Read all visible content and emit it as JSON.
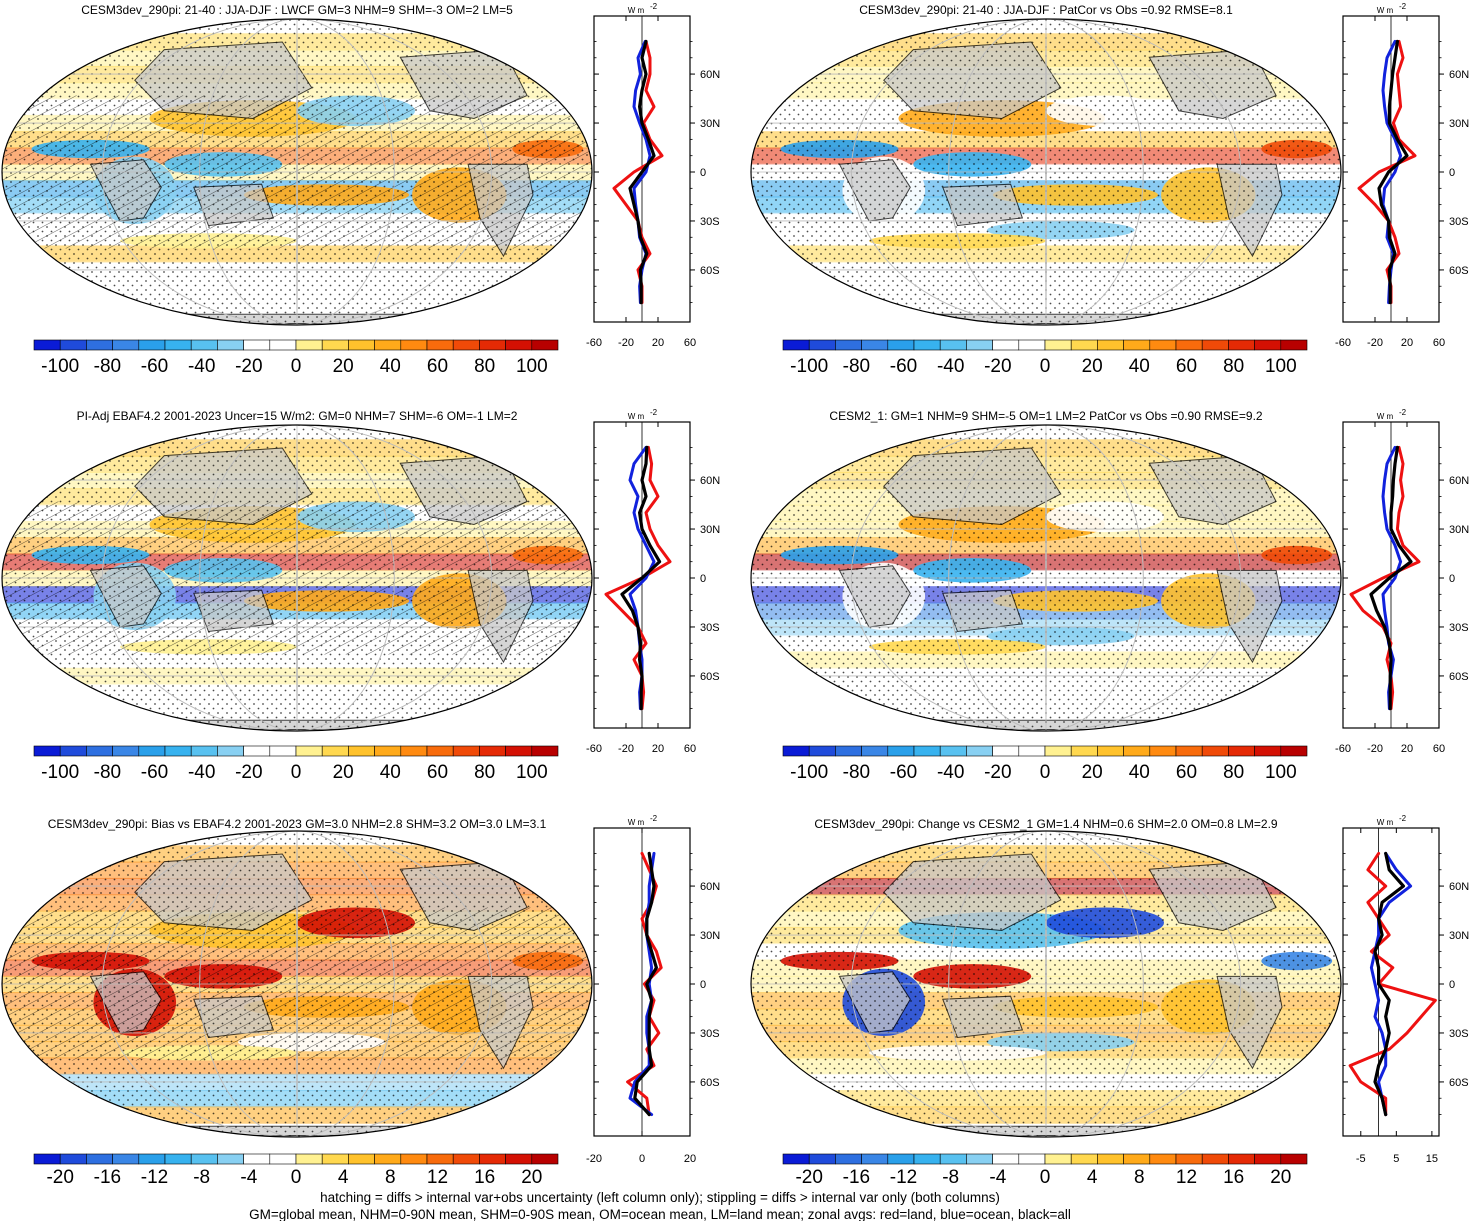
{
  "figure": {
    "footer_lines": [
      "hatching = diffs > internal var+obs uncertainty (left column only); stippling = diffs > internal var only (both columns)",
      "GM=global mean, NHM=0-90N mean, SHM=0-90S mean, OM=ocean mean, LM=land mean; zonal avgs: red=land, blue=ocean, black=all"
    ],
    "zonal_unit": "W m",
    "zonal_unit_exp": "-2",
    "series_colors": {
      "land": "#ee1111",
      "ocean": "#1122dd",
      "all": "#000000"
    },
    "land_color": "#c8c8c8",
    "colormap": [
      "#0a1bd6",
      "#1f4bdb",
      "#2e6fe0",
      "#3a86e6",
      "#2aa0ea",
      "#37b2ef",
      "#58c1f0",
      "#88d0f2",
      "#ffffff",
      "#ffffff",
      "#fff191",
      "#ffd84f",
      "#ffc22c",
      "#ffaa1a",
      "#ff8a10",
      "#f86b0c",
      "#f04a08",
      "#e52a05",
      "#d41003",
      "#b80000"
    ]
  },
  "chart_data": [
    {
      "type": "heatmap",
      "panel": "top-left",
      "title": "CESM3dev_290pi: 21-40 : JJA-DJF : LWCF GM=3 NHM=9 SHM=-3 OM=2 LM=5",
      "colorbar_ticks": [
        "-100",
        "-80",
        "-60",
        "-40",
        "-20",
        "0",
        "20",
        "40",
        "60",
        "80",
        "100"
      ],
      "colorbar_range": [
        -110,
        110
      ],
      "hatching": true,
      "zonal": {
        "xlim": [
          -60,
          60
        ],
        "xticks": [
          "-60",
          "-20",
          "20",
          "60"
        ],
        "yticks": [
          "60N",
          "30N",
          "0",
          "30S",
          "60S"
        ],
        "lat": [
          80,
          70,
          60,
          50,
          40,
          30,
          20,
          10,
          0,
          -10,
          -20,
          -30,
          -40,
          -50,
          -60,
          -70,
          -80
        ],
        "land": [
          5,
          10,
          10,
          5,
          15,
          2,
          10,
          25,
          -10,
          -35,
          -20,
          -5,
          0,
          10,
          -5,
          0,
          0
        ],
        "ocean": [
          4,
          -5,
          -2,
          -8,
          -10,
          -3,
          5,
          10,
          5,
          -10,
          -8,
          -5,
          -3,
          5,
          0,
          -3,
          -2
        ],
        "all": [
          5,
          0,
          5,
          0,
          -3,
          0,
          8,
          15,
          0,
          -15,
          -10,
          -5,
          -2,
          6,
          -2,
          -1,
          -1
        ]
      }
    },
    {
      "type": "heatmap",
      "panel": "top-right",
      "title": "CESM3dev_290pi: 21-40 : JJA-DJF : PatCor vs Obs =0.92 RMSE=8.1",
      "colorbar_ticks": [
        "-100",
        "-80",
        "-60",
        "-40",
        "-20",
        "0",
        "20",
        "40",
        "60",
        "80",
        "100"
      ],
      "colorbar_range": [
        -110,
        110
      ],
      "hatching": false,
      "zonal": {
        "xlim": [
          -60,
          60
        ],
        "xticks": [
          "-60",
          "-20",
          "20",
          "60"
        ],
        "yticks": [
          "60N",
          "30N",
          "0",
          "30S",
          "60S"
        ],
        "lat": [
          80,
          70,
          60,
          50,
          40,
          30,
          20,
          10,
          0,
          -10,
          -20,
          -30,
          -40,
          -50,
          -60,
          -70,
          -80
        ],
        "land": [
          10,
          15,
          8,
          10,
          12,
          3,
          10,
          30,
          -15,
          -40,
          -20,
          -3,
          5,
          10,
          -5,
          0,
          0
        ],
        "ocean": [
          5,
          -5,
          -8,
          -10,
          -8,
          -5,
          5,
          12,
          5,
          -8,
          -10,
          -3,
          -5,
          3,
          0,
          -2,
          -3
        ],
        "all": [
          8,
          5,
          2,
          0,
          -2,
          -2,
          8,
          20,
          -3,
          -15,
          -12,
          -3,
          -2,
          5,
          -2,
          -1,
          -1
        ]
      }
    },
    {
      "type": "heatmap",
      "panel": "middle-left",
      "title": "PI-Adj EBAF4.2 2001-2023 Uncer=15 W/m2: GM=0 NHM=7 SHM=-6 OM=-1 LM=2",
      "colorbar_ticks": [
        "-100",
        "-80",
        "-60",
        "-40",
        "-20",
        "0",
        "20",
        "40",
        "60",
        "80",
        "100"
      ],
      "colorbar_range": [
        -110,
        110
      ],
      "hatching": true,
      "zonal": {
        "xlim": [
          -60,
          60
        ],
        "xticks": [
          "-60",
          "-20",
          "20",
          "60"
        ],
        "yticks": [
          "60N",
          "30N",
          "0",
          "30S",
          "60S"
        ],
        "lat": [
          80,
          70,
          60,
          50,
          40,
          30,
          20,
          10,
          0,
          -10,
          -20,
          -30,
          -40,
          -50,
          -60,
          -70,
          -80
        ],
        "land": [
          8,
          12,
          10,
          20,
          5,
          10,
          20,
          35,
          0,
          -45,
          -25,
          -5,
          5,
          -10,
          0,
          2,
          0
        ],
        "ocean": [
          5,
          -10,
          -15,
          -5,
          -10,
          -5,
          5,
          15,
          5,
          -15,
          -8,
          -5,
          -3,
          0,
          0,
          -3,
          -2
        ],
        "all": [
          6,
          5,
          0,
          5,
          -3,
          0,
          10,
          22,
          0,
          -25,
          -12,
          -5,
          -2,
          -3,
          0,
          -1,
          -1
        ]
      }
    },
    {
      "type": "heatmap",
      "panel": "middle-right",
      "title": "CESM2_1: GM=1 NHM=9 SHM=-5 OM=1 LM=2 PatCor vs Obs =0.90 RMSE=9.2",
      "colorbar_ticks": [
        "-100",
        "-80",
        "-60",
        "-40",
        "-20",
        "0",
        "20",
        "40",
        "60",
        "80",
        "100"
      ],
      "colorbar_range": [
        -110,
        110
      ],
      "hatching": false,
      "zonal": {
        "xlim": [
          -60,
          60
        ],
        "xticks": [
          "-60",
          "-20",
          "20",
          "60"
        ],
        "yticks": [
          "60N",
          "30N",
          "0",
          "30S",
          "60S"
        ],
        "lat": [
          80,
          70,
          60,
          50,
          40,
          30,
          20,
          10,
          0,
          -10,
          -20,
          -30,
          -40,
          -50,
          -60,
          -70,
          -80
        ],
        "land": [
          10,
          15,
          12,
          15,
          10,
          8,
          15,
          35,
          -10,
          -50,
          -35,
          -10,
          0,
          -5,
          0,
          2,
          0
        ],
        "ocean": [
          5,
          -5,
          -8,
          -10,
          -8,
          -5,
          5,
          12,
          5,
          -10,
          -8,
          -5,
          -3,
          3,
          0,
          -3,
          -2
        ],
        "all": [
          8,
          5,
          3,
          2,
          0,
          0,
          10,
          25,
          -2,
          -25,
          -18,
          -8,
          -2,
          0,
          -1,
          -1,
          -1
        ]
      }
    },
    {
      "type": "heatmap",
      "panel": "bottom-left",
      "title": "CESM3dev_290pi: Bias vs EBAF4.2 2001-2023 GM=3.0 NHM=2.8 SHM=3.2 OM=3.0 LM=3.1",
      "colorbar_ticks": [
        "-20",
        "-16",
        "-12",
        "-8",
        "-4",
        "0",
        "4",
        "8",
        "12",
        "16",
        "20"
      ],
      "colorbar_range": [
        -22,
        22
      ],
      "hatching": true,
      "zonal": {
        "xlim": [
          -20,
          20
        ],
        "xticks": [
          "-20",
          "0",
          "20"
        ],
        "yticks": [
          "60N",
          "30N",
          "0",
          "30S",
          "60S"
        ],
        "lat": [
          80,
          70,
          60,
          50,
          40,
          30,
          20,
          10,
          0,
          -10,
          -20,
          -30,
          -40,
          -50,
          -60,
          -70,
          -80
        ],
        "land": [
          0,
          3,
          6,
          4,
          0,
          2,
          6,
          8,
          1,
          5,
          3,
          7,
          2,
          5,
          -6,
          2,
          3
        ],
        "ocean": [
          5,
          4,
          3,
          3,
          2,
          2,
          3,
          4,
          3,
          4,
          2,
          2,
          3,
          3,
          -3,
          -5,
          4
        ],
        "all": [
          3,
          4,
          5,
          4,
          2,
          2,
          4,
          6,
          2,
          4,
          3,
          3,
          3,
          4,
          -2,
          -3,
          3
        ]
      }
    },
    {
      "type": "heatmap",
      "panel": "bottom-right",
      "title": "CESM3dev_290pi: Change vs CESM2_1 GM=1.4 NHM=0.6 SHM=2.0 OM=0.8 LM=2.9",
      "colorbar_ticks": [
        "-20",
        "-16",
        "-12",
        "-8",
        "-4",
        "0",
        "4",
        "8",
        "12",
        "16",
        "20"
      ],
      "colorbar_range": [
        -22,
        22
      ],
      "hatching": false,
      "zonal": {
        "xlim": [
          -10,
          17
        ],
        "xticks": [
          "-5",
          "5",
          "15"
        ],
        "yticks": [
          "60N",
          "30N",
          "0",
          "30S",
          "60S"
        ],
        "lat": [
          80,
          70,
          60,
          50,
          40,
          30,
          20,
          10,
          0,
          -10,
          -20,
          -30,
          -40,
          -50,
          -60,
          -70,
          -80
        ],
        "land": [
          0,
          -3,
          2,
          -3,
          0,
          3,
          -2,
          4,
          0,
          16,
          12,
          8,
          3,
          -8,
          -5,
          2,
          2
        ],
        "ocean": [
          2,
          5,
          9,
          3,
          0,
          0,
          -1,
          -2,
          -1,
          0,
          -1,
          1,
          2,
          2,
          0,
          1,
          2
        ],
        "all": [
          2,
          3,
          7,
          1,
          0,
          1,
          -1,
          0,
          0,
          3,
          2,
          3,
          2,
          0,
          -1,
          1,
          2
        ]
      }
    }
  ]
}
